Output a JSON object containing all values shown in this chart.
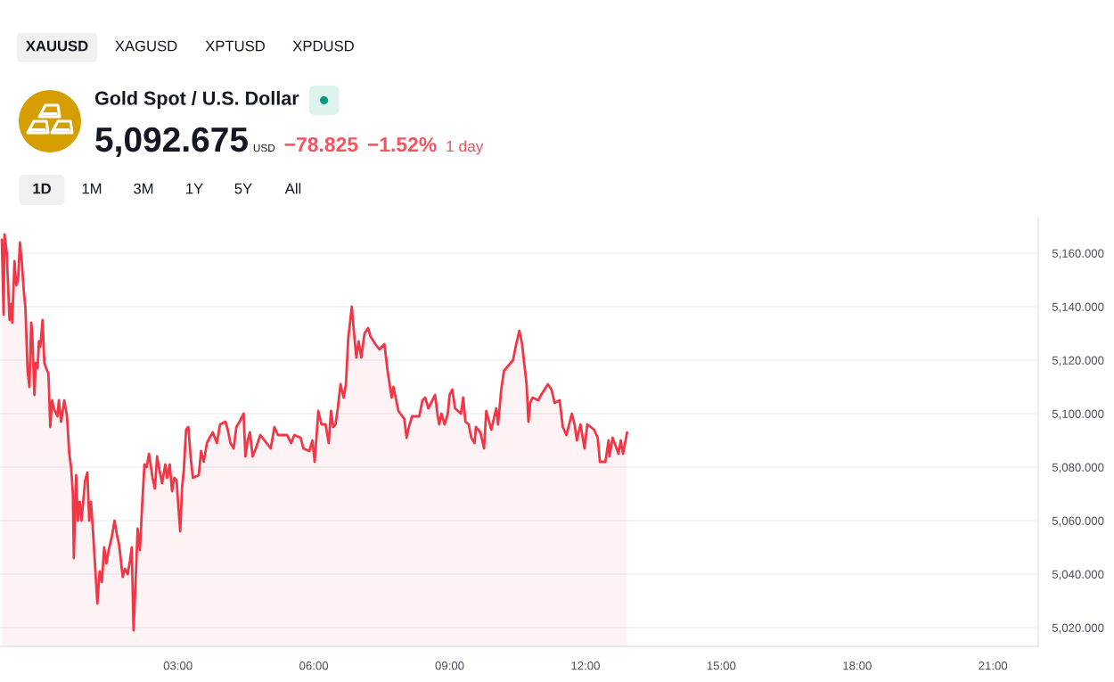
{
  "chart_data": {
    "type": "area",
    "title": "Gold Spot / U.S. Dollar",
    "annotations": [
      "XAUUSD",
      "XAGUSD",
      "XPTUSD",
      "XPDUSD",
      "5,092.675",
      "USD",
      "−78.825",
      "−1.52%",
      "1 day",
      "1D",
      "1M",
      "3M",
      "1Y",
      "5Y",
      "All"
    ],
    "x": [
      -0.89,
      -0.85,
      -0.83,
      -0.78,
      -0.72,
      -0.68,
      -0.66,
      -0.61,
      -0.57,
      -0.53,
      -0.49,
      -0.45,
      -0.4,
      -0.37,
      -0.32,
      -0.28,
      -0.24,
      -0.22,
      -0.17,
      -0.14,
      -0.1,
      -0.07,
      -0.04,
      0.01,
      0.05,
      0.09,
      0.14,
      0.18,
      0.22,
      0.26,
      0.34,
      0.37,
      0.42,
      0.49,
      0.55,
      0.6,
      0.64,
      0.68,
      0.7,
      0.75,
      0.79,
      0.83,
      0.87,
      0.95,
      1.0,
      1.04,
      1.08,
      1.12,
      1.16,
      1.22,
      1.27,
      1.32,
      1.37,
      1.42,
      1.47,
      1.54,
      1.6,
      1.65,
      1.7,
      1.78,
      1.83,
      1.89,
      1.94,
      1.98,
      2.02,
      2.06,
      2.11,
      2.16,
      2.21,
      2.26,
      2.31,
      2.36,
      2.44,
      2.49,
      2.54,
      2.59,
      2.65,
      2.72,
      2.76,
      2.82,
      2.87,
      2.92,
      2.97,
      3.01,
      3.05,
      3.09,
      3.13,
      3.18,
      3.23,
      3.28,
      3.33,
      3.46,
      3.51,
      3.57,
      3.64,
      3.7,
      3.77,
      3.86,
      3.93,
      4.05,
      4.1,
      4.16,
      4.23,
      4.29,
      4.36,
      4.45,
      4.49,
      4.54,
      4.59,
      4.65,
      4.72,
      4.82,
      5.05,
      5.13,
      5.21,
      5.41,
      5.5,
      5.57,
      5.71,
      5.77,
      5.9,
      5.97,
      6.02,
      6.1,
      6.17,
      6.26,
      6.33,
      6.38,
      6.43,
      6.48,
      6.53,
      6.59,
      6.66,
      6.71,
      6.76,
      6.84,
      6.89,
      6.94,
      6.99,
      7.05,
      7.12,
      7.2,
      7.25,
      7.36,
      7.45,
      7.56,
      7.63,
      7.72,
      7.76,
      7.87,
      8.0,
      8.05,
      8.1,
      8.17,
      8.33,
      8.4,
      8.46,
      8.53,
      8.68,
      8.73,
      8.77,
      8.82,
      8.89,
      8.96,
      9.0,
      9.06,
      9.12,
      9.25,
      9.3,
      9.35,
      9.42,
      9.48,
      9.55,
      9.58,
      9.68,
      9.76,
      9.81,
      9.92,
      10.03,
      10.07,
      10.14,
      10.2,
      10.3,
      10.4,
      10.47,
      10.54,
      10.6,
      10.7,
      10.74,
      10.78,
      10.83,
      10.96,
      11.02,
      11.17,
      11.25,
      11.32,
      11.43,
      11.5,
      11.58,
      11.7,
      11.76,
      11.81,
      11.89,
      11.98,
      12.04,
      12.19,
      12.27,
      12.32,
      12.44,
      12.51,
      12.53,
      12.6,
      12.73,
      12.78,
      12.83,
      12.92
    ],
    "series": [
      {
        "color": "#f23645",
        "values": [
          5165,
          5137,
          5167,
          5160,
          5135,
          5141,
          5134,
          5157,
          5148,
          5150,
          5164,
          5157,
          5145,
          5140,
          5116,
          5110,
          5134,
          5131,
          5107,
          5119,
          5117,
          5127,
          5125,
          5135,
          5119,
          5117,
          5115,
          5095,
          5105,
          5102,
          5099,
          5105,
          5097,
          5105,
          5099,
          5085,
          5080,
          5070,
          5046,
          5077,
          5060,
          5067,
          5060,
          5075,
          5078,
          5060,
          5067,
          5057,
          5046,
          5029,
          5041,
          5037,
          5050,
          5044,
          5049,
          5054,
          5060,
          5055,
          5051,
          5039,
          5042,
          5040,
          5045,
          5050,
          5019,
          5035,
          5057,
          5049,
          5066,
          5081,
          5080,
          5085,
          5076,
          5072,
          5084,
          5079,
          5074,
          5081,
          5076,
          5081,
          5071,
          5076,
          5075,
          5065,
          5056,
          5072,
          5079,
          5094,
          5095,
          5084,
          5076,
          5077,
          5086,
          5082,
          5089,
          5091,
          5093,
          5089,
          5096,
          5097,
          5094,
          5089,
          5087,
          5095,
          5097,
          5100,
          5084,
          5090,
          5093,
          5084,
          5087,
          5092,
          5087,
          5095,
          5092,
          5092,
          5089,
          5092,
          5091,
          5087,
          5086,
          5090,
          5082,
          5101,
          5096,
          5096,
          5089,
          5101,
          5095,
          5096,
          5102,
          5111,
          5106,
          5111,
          5128,
          5140,
          5130,
          5121,
          5127,
          5121,
          5130,
          5132,
          5129,
          5126,
          5124,
          5126,
          5116,
          5106,
          5110,
          5101,
          5098,
          5091,
          5095,
          5099,
          5099,
          5105,
          5106,
          5102,
          5107,
          5100,
          5096,
          5100,
          5096,
          5100,
          5107,
          5109,
          5102,
          5100,
          5106,
          5097,
          5096,
          5091,
          5089,
          5095,
          5093,
          5087,
          5101,
          5094,
          5102,
          5096,
          5109,
          5116,
          5118,
          5120,
          5126,
          5131,
          5126,
          5111,
          5097,
          5104,
          5106,
          5105,
          5107,
          5111,
          5109,
          5104,
          5105,
          5095,
          5092,
          5100,
          5096,
          5090,
          5096,
          5087,
          5096,
          5094,
          5091,
          5082,
          5082,
          5090,
          5084,
          5091,
          5085,
          5090,
          5085,
          5093
        ]
      }
    ],
    "xlim": [
      -0.93,
      22.0
    ],
    "xticks": [
      {
        "value": 3,
        "label": "03:00"
      },
      {
        "value": 6,
        "label": "06:00"
      },
      {
        "value": 9,
        "label": "09:00"
      },
      {
        "value": 12,
        "label": "12:00"
      },
      {
        "value": 15,
        "label": "15:00"
      },
      {
        "value": 18,
        "label": "18:00"
      },
      {
        "value": 21,
        "label": "21:00"
      }
    ],
    "ylim": [
      5013,
      5173
    ],
    "yticks": [
      {
        "value": 5020,
        "label": "5,020.000"
      },
      {
        "value": 5040,
        "label": "5,040.000"
      },
      {
        "value": 5060,
        "label": "5,060.000"
      },
      {
        "value": 5080,
        "label": "5,080.000"
      },
      {
        "value": 5100,
        "label": "5,100.000"
      },
      {
        "value": 5120,
        "label": "5,120.000"
      },
      {
        "value": 5140,
        "label": "5,140.000"
      },
      {
        "value": 5160,
        "label": "5,160.000"
      }
    ],
    "grid": "y"
  }
}
